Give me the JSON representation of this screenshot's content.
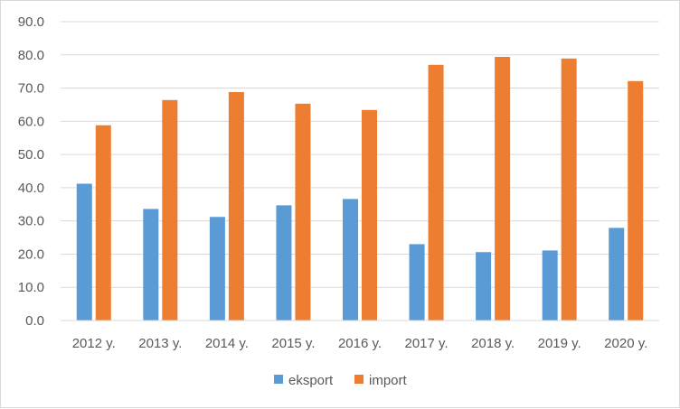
{
  "chart_data": {
    "type": "bar",
    "title": "",
    "xlabel": "",
    "ylabel": "",
    "categories": [
      "2012 y.",
      "2013 y.",
      "2014 y.",
      "2015 y.",
      "2016 y.",
      "2017 y.",
      "2018 y.",
      "2019 y.",
      "2020 y."
    ],
    "series": [
      {
        "name": "eksport",
        "color": "#5b9bd5",
        "values": [
          41.2,
          33.6,
          31.2,
          34.7,
          36.6,
          23.0,
          20.6,
          21.1,
          27.9
        ]
      },
      {
        "name": "import",
        "color": "#ed7d31",
        "values": [
          58.8,
          66.4,
          68.8,
          65.3,
          63.4,
          77.0,
          79.4,
          78.9,
          72.1
        ]
      }
    ],
    "ylim": [
      0,
      90
    ],
    "yticks": [
      "0.0",
      "10.0",
      "20.0",
      "30.0",
      "40.0",
      "50.0",
      "60.0",
      "70.0",
      "80.0",
      "90.0"
    ],
    "grid": true,
    "legend_position": "bottom"
  }
}
